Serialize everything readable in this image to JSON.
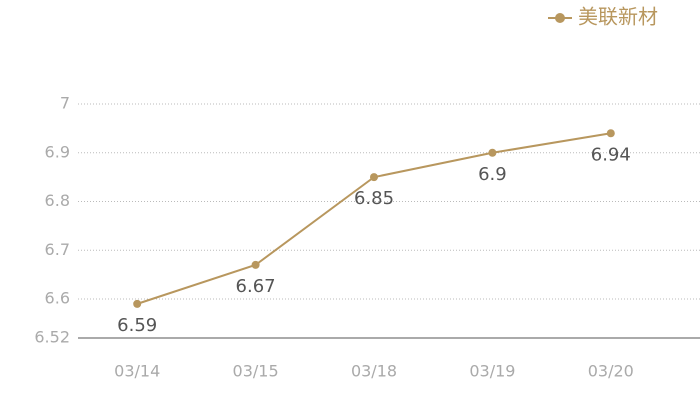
{
  "chart_data": {
    "type": "line",
    "categories": [
      "03/14",
      "03/15",
      "03/18",
      "03/19",
      "03/20"
    ],
    "series": [
      {
        "name": "美联新材",
        "color": "#b8975e",
        "values": [
          6.59,
          6.67,
          6.85,
          6.9,
          6.94
        ]
      }
    ],
    "ylim": [
      6.52,
      7
    ],
    "yticks": [
      6.52,
      6.6,
      6.7,
      6.8,
      6.9,
      7
    ],
    "grid": true,
    "legend": "top-right"
  }
}
